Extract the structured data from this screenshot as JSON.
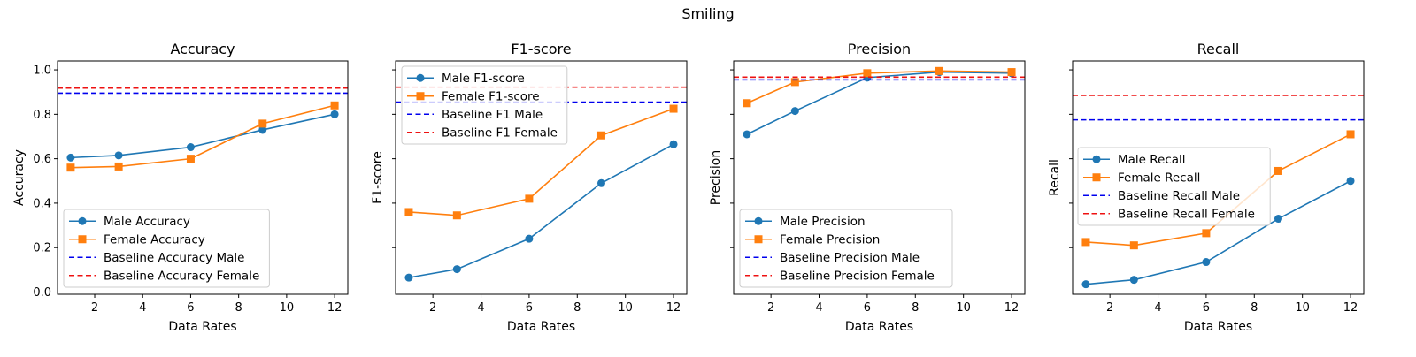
{
  "figure": {
    "title": "Smiling"
  },
  "colors": {
    "male": "#1f77b4",
    "female": "#ff7f0e",
    "baseline_male": "#0000ee",
    "baseline_female": "#ee1111"
  },
  "chart_data": [
    {
      "type": "line",
      "title": "Accuracy",
      "xlabel": "Data Rates",
      "ylabel": "Accuracy",
      "x": [
        1,
        3,
        6,
        9,
        12
      ],
      "xticks": [
        2,
        4,
        6,
        8,
        10,
        12
      ],
      "xlim": [
        0.45,
        12.55
      ],
      "ylim": [
        -0.01,
        1.04
      ],
      "yticks": [
        0.0,
        0.2,
        0.4,
        0.6,
        0.8,
        1.0
      ],
      "yticklabels": [
        "0.0",
        "0.2",
        "0.4",
        "0.6",
        "0.8",
        "1.0"
      ],
      "legend_position": "lower-left",
      "series": [
        {
          "name": "Male Accuracy",
          "kind": "line",
          "marker": "circle",
          "color": "#1f77b4",
          "values": [
            0.605,
            0.615,
            0.652,
            0.73,
            0.8
          ]
        },
        {
          "name": "Female Accuracy",
          "kind": "line",
          "marker": "square",
          "color": "#ff7f0e",
          "values": [
            0.56,
            0.565,
            0.6,
            0.758,
            0.84
          ]
        },
        {
          "name": "Baseline Accuracy Male",
          "kind": "hline",
          "color": "#0000ee",
          "value": 0.895
        },
        {
          "name": "Baseline Accuracy Female",
          "kind": "hline",
          "color": "#ee1111",
          "value": 0.918
        }
      ]
    },
    {
      "type": "line",
      "title": "F1-score",
      "xlabel": "Data Rates",
      "ylabel": "F1-score",
      "x": [
        1,
        3,
        6,
        9,
        12
      ],
      "xticks": [
        2,
        4,
        6,
        8,
        10,
        12
      ],
      "xlim": [
        0.45,
        12.55
      ],
      "ylim": [
        -0.01,
        1.04
      ],
      "yticks": [
        0.0,
        0.2,
        0.4,
        0.6,
        0.8,
        1.0
      ],
      "yticklabels": [
        "",
        "",
        "",
        "",
        "",
        ""
      ],
      "legend_position": "upper-left",
      "series": [
        {
          "name": "Male F1-score",
          "kind": "line",
          "marker": "circle",
          "color": "#1f77b4",
          "values": [
            0.065,
            0.103,
            0.24,
            0.49,
            0.665
          ]
        },
        {
          "name": "Female F1-score",
          "kind": "line",
          "marker": "square",
          "color": "#ff7f0e",
          "values": [
            0.36,
            0.345,
            0.42,
            0.705,
            0.825
          ]
        },
        {
          "name": "Baseline F1 Male",
          "kind": "hline",
          "color": "#0000ee",
          "value": 0.855
        },
        {
          "name": "Baseline F1 Female",
          "kind": "hline",
          "color": "#ee1111",
          "value": 0.922
        }
      ]
    },
    {
      "type": "line",
      "title": "Precision",
      "xlabel": "Data Rates",
      "ylabel": "Precision",
      "x": [
        1,
        3,
        6,
        9,
        12
      ],
      "xticks": [
        2,
        4,
        6,
        8,
        10,
        12
      ],
      "xlim": [
        0.45,
        12.55
      ],
      "ylim": [
        -0.01,
        1.04
      ],
      "yticks": [
        0.0,
        0.2,
        0.4,
        0.6,
        0.8,
        1.0
      ],
      "yticklabels": [
        "",
        "",
        "",
        "",
        "",
        ""
      ],
      "legend_position": "lower-left",
      "series": [
        {
          "name": "Male Precision",
          "kind": "line",
          "marker": "circle",
          "color": "#1f77b4",
          "values": [
            0.71,
            0.815,
            0.965,
            0.99,
            0.985
          ]
        },
        {
          "name": "Female Precision",
          "kind": "line",
          "marker": "square",
          "color": "#ff7f0e",
          "values": [
            0.85,
            0.945,
            0.985,
            0.995,
            0.99
          ]
        },
        {
          "name": "Baseline Precision Male",
          "kind": "hline",
          "color": "#0000ee",
          "value": 0.955
        },
        {
          "name": "Baseline Precision Female",
          "kind": "hline",
          "color": "#ee1111",
          "value": 0.967
        }
      ]
    },
    {
      "type": "line",
      "title": "Recall",
      "xlabel": "Data Rates",
      "ylabel": "Recall",
      "x": [
        1,
        3,
        6,
        9,
        12
      ],
      "xticks": [
        2,
        4,
        6,
        8,
        10,
        12
      ],
      "xlim": [
        0.45,
        12.55
      ],
      "ylim": [
        -0.01,
        1.04
      ],
      "yticks": [
        0.0,
        0.2,
        0.4,
        0.6,
        0.8,
        1.0
      ],
      "yticklabels": [
        "",
        "",
        "",
        "",
        "",
        ""
      ],
      "legend_position": "center-left",
      "series": [
        {
          "name": "Male Recall",
          "kind": "line",
          "marker": "circle",
          "color": "#1f77b4",
          "values": [
            0.035,
            0.055,
            0.135,
            0.33,
            0.5
          ]
        },
        {
          "name": "Female Recall",
          "kind": "line",
          "marker": "square",
          "color": "#ff7f0e",
          "values": [
            0.225,
            0.21,
            0.265,
            0.545,
            0.71
          ]
        },
        {
          "name": "Baseline Recall Male",
          "kind": "hline",
          "color": "#0000ee",
          "value": 0.775
        },
        {
          "name": "Baseline Recall Female",
          "kind": "hline",
          "color": "#ee1111",
          "value": 0.885
        }
      ]
    }
  ]
}
